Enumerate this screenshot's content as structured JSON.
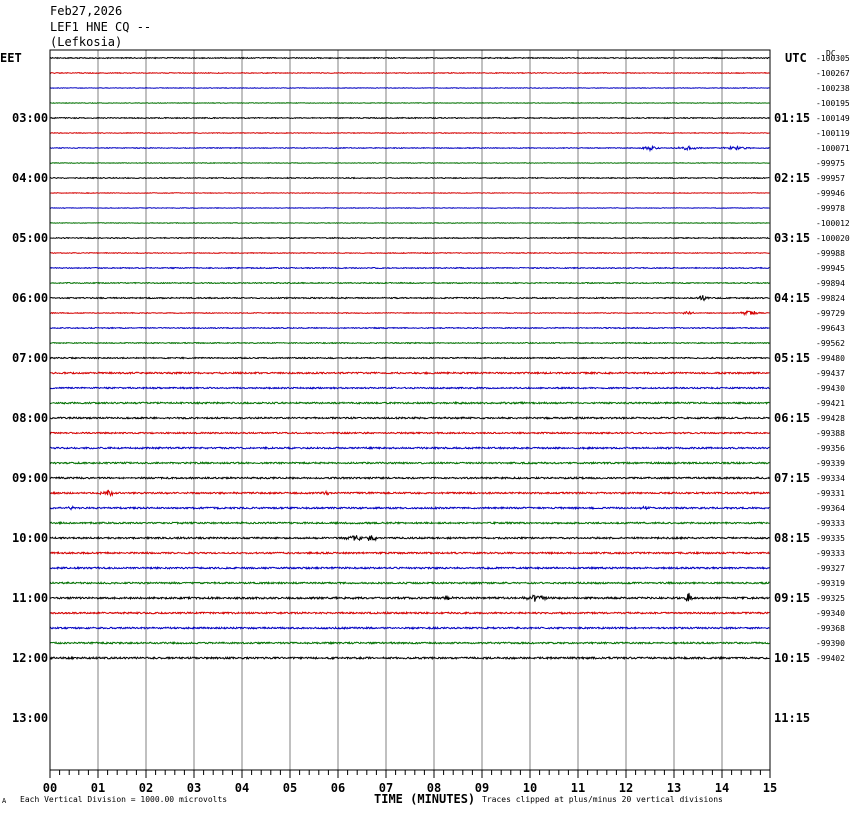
{
  "header": {
    "date": "Feb27,2026",
    "station": "LEF1 HNE CQ --",
    "location": "(Lefkosia)"
  },
  "chart_data": {
    "type": "line",
    "left_timezone": "EET",
    "right_timezone": "UTC",
    "corner_label": "DC",
    "xlabel": "TIME (MINUTES)",
    "xlim": [
      0,
      15
    ],
    "x_ticks": [
      "00",
      "01",
      "02",
      "03",
      "04",
      "05",
      "06",
      "07",
      "08",
      "09",
      "10",
      "11",
      "12",
      "13",
      "14",
      "15"
    ],
    "left_hour_labels": [
      "03:00",
      "04:00",
      "05:00",
      "06:00",
      "07:00",
      "08:00",
      "09:00",
      "10:00",
      "11:00",
      "12:00",
      "13:00"
    ],
    "right_hour_labels": [
      "01:15",
      "02:15",
      "03:15",
      "04:15",
      "05:15",
      "06:15",
      "07:15",
      "08:15",
      "09:15",
      "10:15",
      "11:15"
    ],
    "trace_colors": [
      "#000000",
      "#d40000",
      "#0000c0",
      "#007000"
    ],
    "traces": [
      {
        "offset": "-100305",
        "noise": 1.0,
        "events": []
      },
      {
        "offset": "-100267",
        "noise": 0.8,
        "events": []
      },
      {
        "offset": "-100238",
        "noise": 0.6,
        "events": []
      },
      {
        "offset": "-100195",
        "noise": 0.6,
        "events": []
      },
      {
        "offset": "-100149",
        "noise": 1.0,
        "events": []
      },
      {
        "offset": "-100119",
        "noise": 0.7,
        "events": []
      },
      {
        "offset": "-100071",
        "noise": 0.8,
        "events": [
          [
            12.5,
            2.5,
            0.2
          ],
          [
            13.3,
            1.8,
            0.3
          ],
          [
            14.3,
            2.0,
            0.3
          ]
        ]
      },
      {
        "offset": "-99975",
        "noise": 0.6,
        "events": []
      },
      {
        "offset": "-99957",
        "noise": 1.0,
        "events": []
      },
      {
        "offset": "-99946",
        "noise": 0.6,
        "events": []
      },
      {
        "offset": "-99978",
        "noise": 0.6,
        "events": []
      },
      {
        "offset": "-100012",
        "noise": 0.6,
        "events": []
      },
      {
        "offset": "-100020",
        "noise": 1.0,
        "events": []
      },
      {
        "offset": "-99988",
        "noise": 0.8,
        "events": []
      },
      {
        "offset": "-99945",
        "noise": 1.0,
        "events": []
      },
      {
        "offset": "-99894",
        "noise": 1.0,
        "events": []
      },
      {
        "offset": "-99824",
        "noise": 1.2,
        "events": [
          [
            13.6,
            3.0,
            0.1
          ]
        ]
      },
      {
        "offset": "-99729",
        "noise": 0.8,
        "events": [
          [
            13.3,
            2.0,
            0.1
          ],
          [
            14.6,
            3.0,
            0.2
          ]
        ]
      },
      {
        "offset": "-99643",
        "noise": 1.0,
        "events": []
      },
      {
        "offset": "-99562",
        "noise": 1.0,
        "events": []
      },
      {
        "offset": "-99480",
        "noise": 1.2,
        "events": []
      },
      {
        "offset": "-99437",
        "noise": 1.6,
        "events": []
      },
      {
        "offset": "-99430",
        "noise": 1.4,
        "events": []
      },
      {
        "offset": "-99421",
        "noise": 1.6,
        "events": []
      },
      {
        "offset": "-99428",
        "noise": 1.6,
        "events": []
      },
      {
        "offset": "-99388",
        "noise": 1.4,
        "events": []
      },
      {
        "offset": "-99356",
        "noise": 1.6,
        "events": []
      },
      {
        "offset": "-99339",
        "noise": 1.6,
        "events": []
      },
      {
        "offset": "-99334",
        "noise": 1.6,
        "events": []
      },
      {
        "offset": "-99331",
        "noise": 1.6,
        "events": [
          [
            1.2,
            3.0,
            0.15
          ],
          [
            5.8,
            2.5,
            0.1
          ]
        ]
      },
      {
        "offset": "-99364",
        "noise": 1.6,
        "events": [
          [
            0.4,
            2.0,
            0.1
          ],
          [
            12.4,
            2.0,
            0.1
          ]
        ]
      },
      {
        "offset": "-99333",
        "noise": 1.6,
        "events": []
      },
      {
        "offset": "-99335",
        "noise": 1.6,
        "events": [
          [
            6.4,
            2.5,
            0.3
          ],
          [
            6.7,
            4.0,
            0.1
          ]
        ]
      },
      {
        "offset": "-99333",
        "noise": 1.6,
        "events": []
      },
      {
        "offset": "-99327",
        "noise": 1.6,
        "events": []
      },
      {
        "offset": "-99319",
        "noise": 1.6,
        "events": []
      },
      {
        "offset": "-99325",
        "noise": 1.8,
        "events": [
          [
            8.3,
            2.5,
            0.1
          ],
          [
            10.1,
            3.0,
            0.3
          ],
          [
            13.3,
            6.0,
            0.05
          ]
        ]
      },
      {
        "offset": "-99340",
        "noise": 1.6,
        "events": []
      },
      {
        "offset": "-99368",
        "noise": 1.6,
        "events": []
      },
      {
        "offset": "-99390",
        "noise": 1.6,
        "events": []
      },
      {
        "offset": "-99402",
        "noise": 1.8,
        "events": []
      }
    ],
    "footer_left": "Each Vertical Division = 1000.00 microvolts",
    "footer_right": "Traces clipped at plus/minus 20 vertical divisions",
    "footer_mark": "A"
  }
}
